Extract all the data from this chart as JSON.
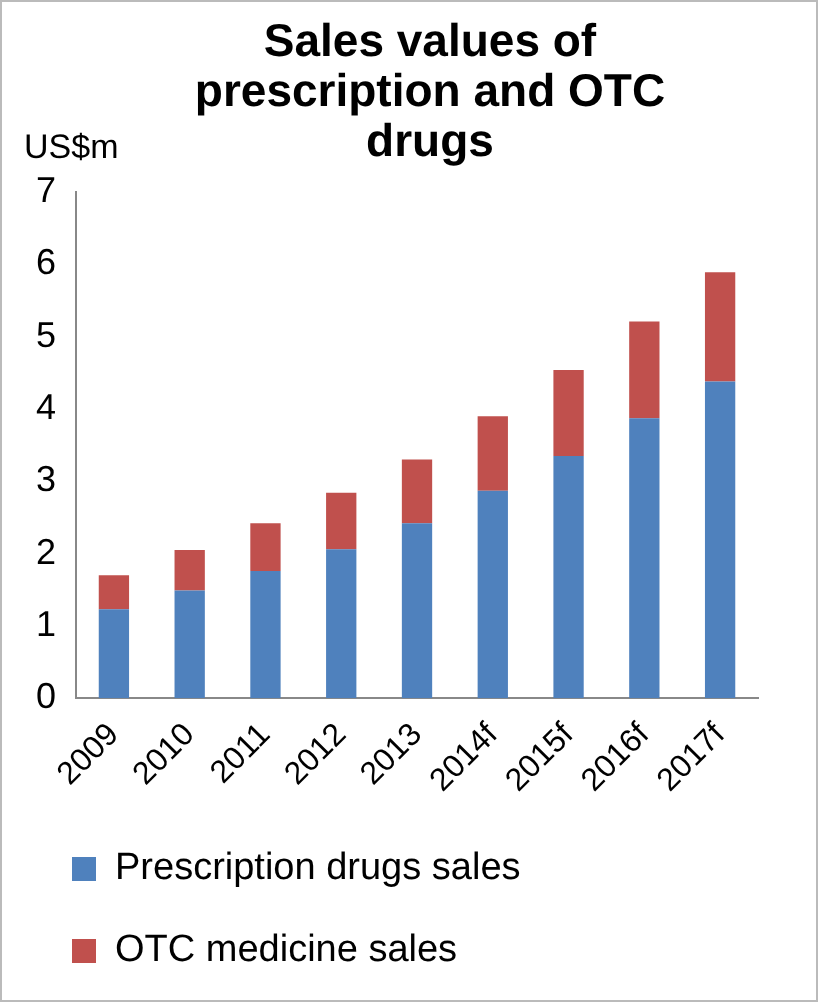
{
  "chart_data": {
    "type": "bar",
    "title": "Sales values of prescription and OTC drugs",
    "ylabel": "US$m",
    "stacked": true,
    "categories": [
      "2009",
      "2010",
      "2011",
      "2012",
      "2013",
      "2014f",
      "2015f",
      "2016f",
      "2017f"
    ],
    "series": [
      {
        "name": "Prescription drugs sales",
        "color": "#4f81bd",
        "values": [
          1.23,
          1.49,
          1.76,
          2.06,
          2.42,
          2.87,
          3.35,
          3.87,
          4.38
        ]
      },
      {
        "name": "OTC medicine sales",
        "color": "#c0504d",
        "values": [
          0.47,
          0.56,
          0.66,
          0.78,
          0.88,
          1.03,
          1.19,
          1.34,
          1.51
        ]
      }
    ],
    "ylim": [
      0,
      7
    ],
    "yticks": [
      0,
      1,
      2,
      3,
      4,
      5,
      6,
      7
    ],
    "grid": false,
    "legend": "bottom"
  }
}
